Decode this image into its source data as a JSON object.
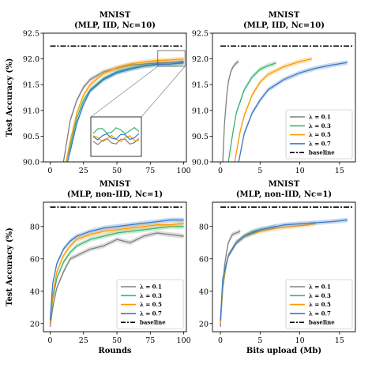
{
  "figure": {
    "legend_entries": [
      "λ = 0.1",
      "λ = 0.3",
      "λ = 0.5",
      "λ = 0.7",
      "baseline"
    ],
    "colors": {
      "l01": "#808080",
      "l03": "#3cb371",
      "l05": "#ff9900",
      "l07": "#3a78c8",
      "baseline": "#000000"
    }
  },
  "chart_data": [
    {
      "id": "p1",
      "type": "line",
      "title_line1": "MNIST",
      "title_line2": "(MLP, IID, Nc=10)",
      "xlabel": "",
      "ylabel": "Test Accuracy (%)",
      "xlim": [
        -5,
        102
      ],
      "ylim": [
        90.0,
        92.5
      ],
      "xticks": [
        "0",
        "25",
        "50",
        "75",
        "100"
      ],
      "xtick_values": [
        0,
        25,
        50,
        75,
        100
      ],
      "yticks": [
        "90.0",
        "90.5",
        "91.0",
        "91.5",
        "92.0",
        "92.5"
      ],
      "ytick_values": [
        90.0,
        90.5,
        91.0,
        91.5,
        92.0,
        92.5
      ],
      "baseline": 92.25,
      "legend_position": "none",
      "inset_zoom": true,
      "series": [
        {
          "name": "λ = 0.1",
          "color": "#808080",
          "x": [
            10,
            15,
            20,
            25,
            30,
            40,
            50,
            60,
            70,
            80,
            90,
            100
          ],
          "y": [
            90.0,
            90.8,
            91.2,
            91.45,
            91.6,
            91.75,
            91.82,
            91.88,
            91.9,
            91.92,
            91.93,
            91.95
          ]
        },
        {
          "name": "λ = 0.3",
          "color": "#3cb371",
          "x": [
            12,
            15,
            20,
            25,
            30,
            40,
            50,
            60,
            70,
            80,
            90,
            100
          ],
          "y": [
            90.0,
            90.3,
            90.85,
            91.2,
            91.4,
            91.62,
            91.75,
            91.82,
            91.87,
            91.9,
            91.9,
            91.92
          ]
        },
        {
          "name": "λ = 0.5",
          "color": "#ff9900",
          "x": [
            12,
            15,
            20,
            25,
            30,
            40,
            50,
            60,
            70,
            80,
            90,
            100
          ],
          "y": [
            90.0,
            90.4,
            90.95,
            91.3,
            91.5,
            91.72,
            91.83,
            91.9,
            91.94,
            91.97,
            91.98,
            92.0
          ]
        },
        {
          "name": "λ = 0.7",
          "color": "#3a78c8",
          "x": [
            13,
            15,
            20,
            25,
            30,
            40,
            50,
            60,
            70,
            80,
            90,
            100
          ],
          "y": [
            90.0,
            90.2,
            90.75,
            91.12,
            91.38,
            91.6,
            91.73,
            91.8,
            91.86,
            91.89,
            91.9,
            91.93
          ]
        }
      ]
    },
    {
      "id": "p2",
      "type": "line",
      "title_line1": "MNIST",
      "title_line2": "(MLP, IID, Nc=10)",
      "xlabel": "",
      "ylabel": "",
      "xlim": [
        -1,
        17
      ],
      "ylim": [
        90.0,
        92.5
      ],
      "xticks": [
        "0",
        "5",
        "10",
        "15"
      ],
      "xtick_values": [
        0,
        5,
        10,
        15
      ],
      "yticks": [
        "90.0",
        "90.5",
        "91.0",
        "91.5",
        "92.0",
        "92.5"
      ],
      "ytick_values": [
        90.0,
        90.5,
        91.0,
        91.5,
        92.0,
        92.5
      ],
      "baseline": 92.25,
      "legend_position": "lower-right",
      "series": [
        {
          "name": "λ = 0.1",
          "color": "#808080",
          "x": [
            0.3,
            0.5,
            0.8,
            1.0,
            1.3,
            1.6,
            2.0,
            2.3
          ],
          "y": [
            90.0,
            90.7,
            91.3,
            91.55,
            91.75,
            91.85,
            91.92,
            91.95
          ]
        },
        {
          "name": "λ = 0.3",
          "color": "#3cb371",
          "x": [
            1.0,
            1.5,
            2.0,
            3.0,
            4.0,
            5.0,
            6.0,
            7.0
          ],
          "y": [
            90.0,
            90.5,
            90.95,
            91.4,
            91.65,
            91.8,
            91.87,
            91.92
          ]
        },
        {
          "name": "λ = 0.5",
          "color": "#ff9900",
          "x": [
            1.8,
            2.5,
            3.0,
            4.0,
            5.0,
            6.0,
            8.0,
            10.0,
            11.5
          ],
          "y": [
            90.0,
            90.6,
            90.9,
            91.3,
            91.55,
            91.7,
            91.85,
            91.95,
            92.0
          ]
        },
        {
          "name": "λ = 0.7",
          "color": "#3a78c8",
          "x": [
            2.3,
            3.0,
            4.0,
            5.0,
            6.0,
            8.0,
            10.0,
            12.0,
            14.0,
            16.0
          ],
          "y": [
            90.0,
            90.55,
            90.95,
            91.2,
            91.4,
            91.6,
            91.73,
            91.82,
            91.88,
            91.93
          ]
        }
      ]
    },
    {
      "id": "p3",
      "type": "line",
      "title_line1": "MNIST",
      "title_line2": "(MLP, non-IID, Nc=1)",
      "xlabel": "Rounds",
      "ylabel": "Test Accuracy (%)",
      "xlim": [
        -5,
        102
      ],
      "ylim": [
        15,
        95
      ],
      "xticks": [
        "0",
        "25",
        "50",
        "75",
        "100"
      ],
      "xtick_values": [
        0,
        25,
        50,
        75,
        100
      ],
      "yticks": [
        "20",
        "40",
        "60",
        "80"
      ],
      "ytick_values": [
        20,
        40,
        60,
        80
      ],
      "baseline": 92,
      "legend_position": "lower-right",
      "series": [
        {
          "name": "λ = 0.1",
          "color": "#808080",
          "x": [
            0,
            2,
            5,
            10,
            15,
            20,
            30,
            40,
            50,
            60,
            70,
            80,
            90,
            100
          ],
          "y": [
            18,
            30,
            42,
            52,
            60,
            62,
            66,
            68,
            72,
            70,
            74,
            76,
            75,
            74
          ]
        },
        {
          "name": "λ = 0.3",
          "color": "#3cb371",
          "x": [
            0,
            2,
            5,
            10,
            15,
            20,
            30,
            40,
            50,
            60,
            70,
            80,
            90,
            100
          ],
          "y": [
            20,
            35,
            48,
            58,
            64,
            68,
            72,
            74,
            76,
            77,
            78,
            79,
            80,
            80
          ]
        },
        {
          "name": "λ = 0.5",
          "color": "#ff9900",
          "x": [
            0,
            2,
            5,
            10,
            15,
            20,
            30,
            40,
            50,
            60,
            70,
            80,
            90,
            100
          ],
          "y": [
            20,
            38,
            52,
            62,
            68,
            72,
            75,
            77,
            78,
            79,
            80,
            81,
            81,
            82
          ]
        },
        {
          "name": "λ = 0.7",
          "color": "#3a78c8",
          "x": [
            0,
            2,
            5,
            10,
            15,
            20,
            30,
            40,
            50,
            60,
            70,
            80,
            90,
            100
          ],
          "y": [
            22,
            45,
            57,
            66,
            71,
            74,
            77,
            79,
            80,
            81,
            82,
            83,
            84,
            84
          ]
        }
      ]
    },
    {
      "id": "p4",
      "type": "line",
      "title_line1": "MNIST",
      "title_line2": "(MLP, non-IID, Nc=1)",
      "xlabel": "Bits upload (Mb)",
      "ylabel": "",
      "xlim": [
        -1,
        17
      ],
      "ylim": [
        15,
        95
      ],
      "xticks": [
        "0",
        "5",
        "10",
        "15"
      ],
      "xtick_values": [
        0,
        5,
        10,
        15
      ],
      "yticks": [
        "20",
        "40",
        "60",
        "80"
      ],
      "ytick_values": [
        20,
        40,
        60,
        80
      ],
      "baseline": 92,
      "legend_position": "lower-right",
      "series": [
        {
          "name": "λ = 0.1",
          "color": "#808080",
          "x": [
            0,
            0.2,
            0.5,
            0.8,
            1.0,
            1.5,
            2.0,
            2.5
          ],
          "y": [
            18,
            35,
            55,
            65,
            70,
            75,
            76,
            77
          ]
        },
        {
          "name": "λ = 0.3",
          "color": "#3cb371",
          "x": [
            0,
            0.3,
            0.7,
            1.0,
            2.0,
            3.0,
            4.0,
            5.0,
            6.0,
            7.0
          ],
          "y": [
            20,
            42,
            55,
            62,
            70,
            74,
            77,
            78,
            79,
            80
          ]
        },
        {
          "name": "λ = 0.5",
          "color": "#ff9900",
          "x": [
            0,
            0.3,
            0.7,
            1.0,
            2.0,
            3.0,
            5.0,
            7.0,
            9.0,
            11.0,
            12.0
          ],
          "y": [
            20,
            45,
            56,
            62,
            70,
            74,
            77,
            79,
            80,
            81,
            82
          ]
        },
        {
          "name": "λ = 0.7",
          "color": "#3a78c8",
          "x": [
            0,
            0.3,
            0.7,
            1.0,
            2.0,
            3.0,
            5.0,
            8.0,
            11.0,
            14.0,
            16.0
          ],
          "y": [
            22,
            48,
            56,
            62,
            70,
            74,
            78,
            81,
            82,
            83,
            84
          ]
        }
      ]
    }
  ]
}
